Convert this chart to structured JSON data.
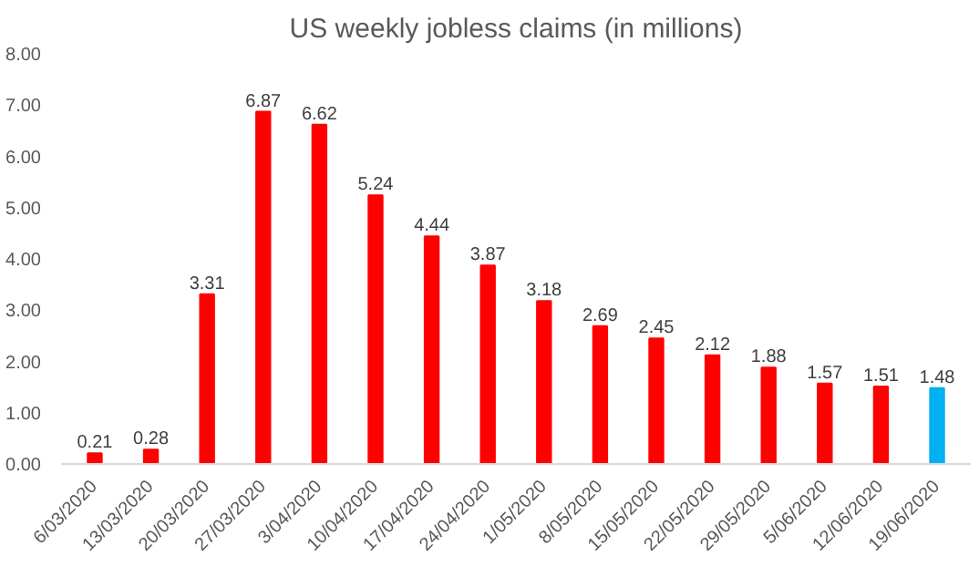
{
  "chart_data": {
    "type": "bar",
    "title": "US weekly jobless claims (in millions)",
    "categories": [
      "6/03/2020",
      "13/03/2020",
      "20/03/2020",
      "27/03/2020",
      "3/04/2020",
      "10/04/2020",
      "17/04/2020",
      "24/04/2020",
      "1/05/2020",
      "8/05/2020",
      "15/05/2020",
      "22/05/2020",
      "29/05/2020",
      "5/06/2020",
      "12/06/2020",
      "19/06/2020"
    ],
    "values": [
      0.21,
      0.28,
      3.31,
      6.87,
      6.62,
      5.24,
      4.44,
      3.87,
      3.18,
      2.69,
      2.45,
      2.12,
      1.88,
      1.57,
      1.51,
      1.48
    ],
    "colors": [
      "#ff0000",
      "#ff0000",
      "#ff0000",
      "#ff0000",
      "#ff0000",
      "#ff0000",
      "#ff0000",
      "#ff0000",
      "#ff0000",
      "#ff0000",
      "#ff0000",
      "#ff0000",
      "#ff0000",
      "#ff0000",
      "#ff0000",
      "#00b0f0"
    ],
    "ylim": [
      0,
      8
    ],
    "yticks": [
      {
        "value": 0,
        "label": "0.00"
      },
      {
        "value": 1,
        "label": "1.00"
      },
      {
        "value": 2,
        "label": "2.00"
      },
      {
        "value": 3,
        "label": "3.00"
      },
      {
        "value": 4,
        "label": "4.00"
      },
      {
        "value": 5,
        "label": "5.00"
      },
      {
        "value": 6,
        "label": "6.00"
      },
      {
        "value": 7,
        "label": "7.00"
      },
      {
        "value": 8,
        "label": "8.00"
      }
    ],
    "data_labels": true,
    "grid": false
  }
}
